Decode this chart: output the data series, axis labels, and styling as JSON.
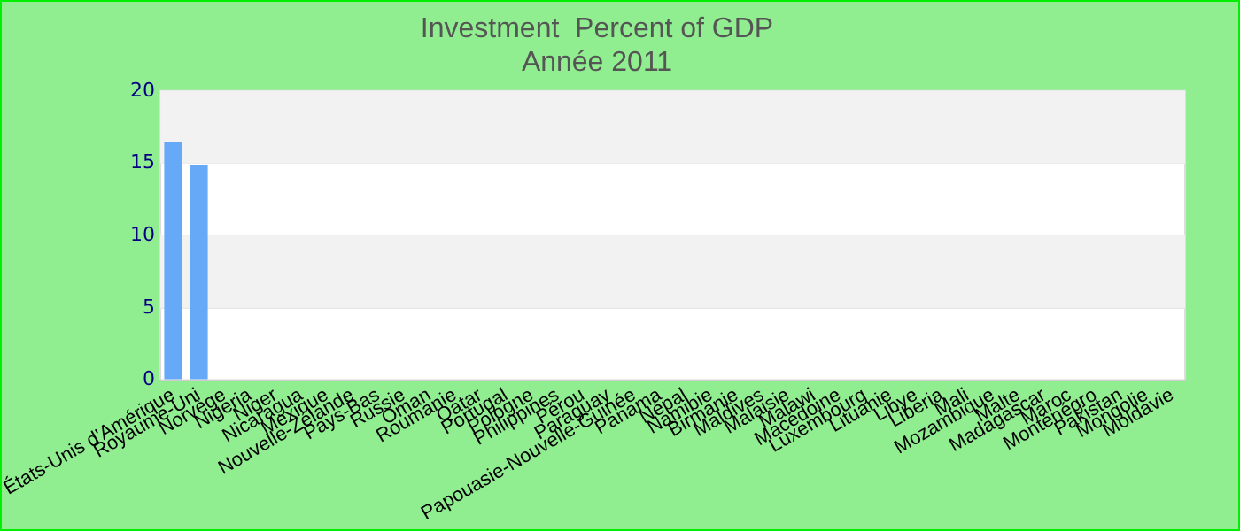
{
  "chart_data": {
    "type": "bar",
    "title": "Investment  Percent of GDP",
    "subtitle": "Année 2011",
    "categories": [
      "États-Unis d'Amérique",
      "Royaume-Uni",
      "Norvège",
      "Nigeria",
      "Niger",
      "Nicaragua",
      "Mexique",
      "Nouvelle-Zélande",
      "Pays-Bas",
      "Russie",
      "Oman",
      "Roumanie",
      "Qatar",
      "Portugal",
      "Pologne",
      "Philippines",
      "Pérou",
      "Paraguay",
      "Papouasie-Nouvelle-Guinée",
      "Panama",
      "Népal",
      "Namibie",
      "Birmanie",
      "Maldives",
      "Malaisie",
      "Malawi",
      "Macédoine",
      "Luxembourg",
      "Lituanie",
      "Libye",
      "Liberia",
      "Mali",
      "Mozambique",
      "Malte",
      "Madagascar",
      "Maroc",
      "Monténégro",
      "Pakistan",
      "Mongolie",
      "Moldavie"
    ],
    "values": [
      16.5,
      14.9,
      null,
      null,
      null,
      null,
      null,
      null,
      null,
      null,
      null,
      null,
      null,
      null,
      null,
      null,
      null,
      null,
      null,
      null,
      null,
      null,
      null,
      null,
      null,
      null,
      null,
      null,
      null,
      null,
      null,
      null,
      null,
      null,
      null,
      null,
      null,
      null,
      null,
      null
    ],
    "color": "#66aaf7",
    "ylim": [
      0,
      20
    ],
    "yticks": [
      0,
      5,
      10,
      15,
      20
    ],
    "grid": "y"
  }
}
